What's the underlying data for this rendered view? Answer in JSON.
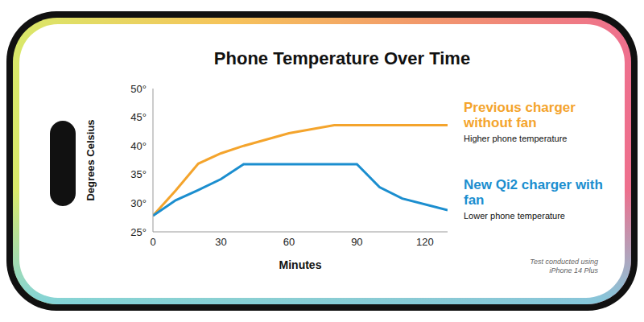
{
  "chart_data": {
    "type": "line",
    "title": "Phone Temperature Over Time",
    "x_label": "Minutes",
    "y_label": "Degrees Celsius",
    "x": [
      0,
      10,
      20,
      30,
      40,
      60,
      80,
      90,
      100,
      110,
      130
    ],
    "series": [
      {
        "name": "Previous charger without fan",
        "annotation": "Higher phone temperature",
        "color": "#f4a42c",
        "values": [
          27.8,
          32.2,
          36.9,
          38.7,
          40,
          42.2,
          43.6,
          43.6,
          43.6,
          43.6,
          43.6
        ]
      },
      {
        "name": "New Qi2 charger with fan",
        "annotation": "Lower phone temperature",
        "color": "#1b8ecf",
        "values": [
          27.8,
          30.5,
          32.3,
          34.2,
          36.8,
          36.8,
          36.8,
          36.8,
          32.8,
          30.8,
          28.8
        ]
      }
    ],
    "xlim": [
      0,
      130
    ],
    "xticks": [
      0,
      30,
      60,
      90,
      120
    ],
    "ylim": [
      25,
      50
    ],
    "yticks": [
      {
        "value": 25,
        "label": "25°"
      },
      {
        "value": 30,
        "label": "30°"
      },
      {
        "value": 35,
        "label": "35°"
      },
      {
        "value": 40,
        "label": "40°"
      },
      {
        "value": 45,
        "label": "45°"
      },
      {
        "value": 50,
        "label": "50°"
      }
    ],
    "grid": false,
    "legend": "right",
    "annotations": [
      "Test conducted using iPhone 14 Plus"
    ]
  }
}
